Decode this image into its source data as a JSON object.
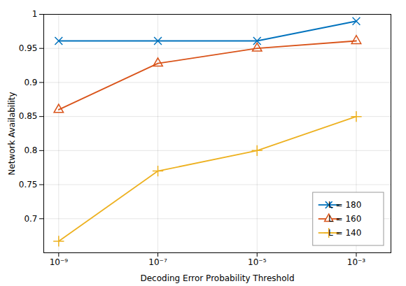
{
  "chart_data": {
    "type": "line",
    "x": [
      1e-09,
      1e-07,
      1e-05,
      0.001
    ],
    "series": [
      {
        "name": "L = 180",
        "color": "#0072BD",
        "marker": "x",
        "values": [
          0.961,
          0.961,
          0.961,
          0.99
        ]
      },
      {
        "name": "L = 160",
        "color": "#D95319",
        "marker": "triangle",
        "values": [
          0.86,
          0.928,
          0.95,
          0.961
        ]
      },
      {
        "name": "L = 140",
        "color": "#EDB120",
        "marker": "plus",
        "values": [
          0.667,
          0.77,
          0.8,
          0.85
        ]
      }
    ],
    "xlabel": "Decoding Error Probability Threshold",
    "ylabel": "Network Availability",
    "log": "x",
    "xlim": [
      5e-10,
      0.005
    ],
    "xticks": [
      {
        "value": 1e-09,
        "label": "10⁻⁹"
      },
      {
        "value": 1e-07,
        "label": "10⁻⁷"
      },
      {
        "value": 1e-05,
        "label": "10⁻⁵"
      },
      {
        "value": 0.001,
        "label": "10⁻³"
      }
    ],
    "ylim": [
      0.65,
      1.0
    ],
    "yticks": [
      0.7,
      0.75,
      0.8,
      0.85,
      0.9,
      0.95,
      1
    ],
    "grid": true,
    "legend": "lower right"
  }
}
